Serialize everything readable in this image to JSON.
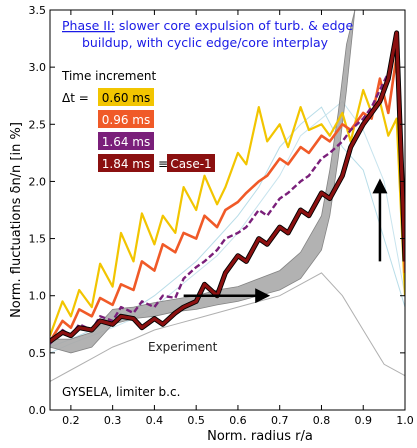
{
  "chart_data": {
    "type": "line",
    "title_phase": "Phase II:",
    "title_rest": " slower core expulsion of turb. & edge",
    "title_line2": "buildup, with cyclic edge/core interplay",
    "xlabel": "Norm. radius r/a",
    "ylabel": "Norm. fluctuations δn/n  [in %]",
    "xlim": [
      0.15,
      1.0
    ],
    "ylim": [
      0.0,
      3.5
    ],
    "xticks": [
      "0.2",
      "0.3",
      "0.4",
      "0.5",
      "0.6",
      "0.7",
      "0.8",
      "0.9",
      "1.0"
    ],
    "yticks": [
      "0.0",
      "0.5",
      "1.0",
      "1.5",
      "2.0",
      "2.5",
      "3.0",
      "3.5"
    ],
    "legend_title": "Time increment",
    "legend_delta": "Δt =",
    "legend_equiv": "≡",
    "case_label": "Case-1",
    "experiment_label": "Experiment",
    "gysela_label": "GYSELA, limiter b.c.",
    "series": [
      {
        "name": "0.60 ms",
        "color": "#f2c500",
        "x": [
          0.15,
          0.18,
          0.2,
          0.22,
          0.25,
          0.27,
          0.3,
          0.32,
          0.35,
          0.37,
          0.4,
          0.42,
          0.45,
          0.47,
          0.5,
          0.52,
          0.55,
          0.57,
          0.6,
          0.62,
          0.65,
          0.67,
          0.7,
          0.72,
          0.75,
          0.77,
          0.8,
          0.82,
          0.85,
          0.87,
          0.9,
          0.92,
          0.94,
          0.96,
          0.98,
          1.0
        ],
        "y": [
          0.65,
          0.95,
          0.82,
          1.05,
          0.9,
          1.28,
          1.08,
          1.55,
          1.3,
          1.72,
          1.45,
          1.7,
          1.55,
          1.95,
          1.75,
          2.05,
          1.8,
          1.95,
          2.25,
          2.15,
          2.65,
          2.35,
          2.5,
          2.3,
          2.65,
          2.45,
          2.5,
          2.4,
          2.6,
          2.35,
          2.8,
          2.6,
          2.7,
          2.4,
          2.55,
          1.0
        ]
      },
      {
        "name": "0.96 ms",
        "color": "#f05a28",
        "x": [
          0.15,
          0.18,
          0.2,
          0.22,
          0.25,
          0.27,
          0.3,
          0.32,
          0.35,
          0.37,
          0.4,
          0.42,
          0.45,
          0.47,
          0.5,
          0.52,
          0.55,
          0.57,
          0.6,
          0.62,
          0.65,
          0.67,
          0.7,
          0.72,
          0.75,
          0.77,
          0.8,
          0.82,
          0.85,
          0.87,
          0.9,
          0.92,
          0.94,
          0.96,
          0.98,
          1.0
        ],
        "y": [
          0.6,
          0.78,
          0.72,
          0.88,
          0.82,
          0.98,
          0.92,
          1.1,
          1.05,
          1.3,
          1.22,
          1.45,
          1.38,
          1.55,
          1.5,
          1.7,
          1.6,
          1.75,
          1.82,
          1.9,
          2.0,
          2.05,
          2.2,
          2.15,
          2.3,
          2.25,
          2.4,
          2.35,
          2.5,
          2.45,
          2.6,
          2.55,
          2.9,
          2.6,
          3.1,
          1.2
        ]
      },
      {
        "name": "1.64 ms",
        "color": "#7a1f7a",
        "x": [
          0.15,
          0.18,
          0.2,
          0.22,
          0.25,
          0.27,
          0.3,
          0.32,
          0.35,
          0.37,
          0.4,
          0.42,
          0.45,
          0.47,
          0.5,
          0.52,
          0.55,
          0.57,
          0.6,
          0.62,
          0.65,
          0.67,
          0.7,
          0.72,
          0.75,
          0.77,
          0.8,
          0.82,
          0.85,
          0.87,
          0.9,
          0.92,
          0.94,
          0.96,
          0.98,
          1.0
        ],
        "y": [
          0.58,
          0.7,
          0.65,
          0.75,
          0.7,
          0.82,
          0.78,
          0.9,
          0.85,
          0.95,
          0.9,
          1.0,
          0.98,
          1.15,
          1.25,
          1.3,
          1.4,
          1.5,
          1.55,
          1.6,
          1.75,
          1.7,
          1.85,
          1.9,
          2.0,
          2.05,
          2.2,
          2.25,
          2.35,
          2.45,
          2.55,
          2.65,
          2.8,
          2.95,
          3.2,
          1.6
        ]
      },
      {
        "name": "1.84 ms",
        "color": "#8b1010",
        "x": [
          0.15,
          0.18,
          0.2,
          0.22,
          0.25,
          0.27,
          0.3,
          0.32,
          0.35,
          0.37,
          0.4,
          0.42,
          0.45,
          0.47,
          0.5,
          0.52,
          0.55,
          0.57,
          0.6,
          0.62,
          0.65,
          0.67,
          0.7,
          0.72,
          0.75,
          0.77,
          0.8,
          0.82,
          0.85,
          0.87,
          0.9,
          0.92,
          0.94,
          0.96,
          0.98,
          1.0
        ],
        "y": [
          0.6,
          0.68,
          0.65,
          0.72,
          0.7,
          0.78,
          0.75,
          0.82,
          0.8,
          0.72,
          0.8,
          0.75,
          0.85,
          0.9,
          0.95,
          1.1,
          1.0,
          1.2,
          1.35,
          1.3,
          1.5,
          1.45,
          1.6,
          1.55,
          1.75,
          1.7,
          1.9,
          1.85,
          2.05,
          2.3,
          2.5,
          2.6,
          2.7,
          2.9,
          3.3,
          1.3
        ]
      }
    ],
    "faint_series": [
      {
        "color": "#b8dde8",
        "x": [
          0.15,
          0.2,
          0.25,
          0.3,
          0.35,
          0.4,
          0.45,
          0.5,
          0.55,
          0.6,
          0.65,
          0.7,
          0.75,
          0.8,
          0.85,
          0.9,
          0.95,
          1.0
        ],
        "y": [
          0.55,
          0.62,
          0.7,
          0.78,
          0.88,
          1.0,
          1.15,
          1.3,
          1.5,
          1.7,
          1.95,
          2.3,
          2.5,
          2.65,
          2.3,
          2.1,
          1.5,
          0.9
        ]
      },
      {
        "color": "#c8e4ee",
        "x": [
          0.15,
          0.2,
          0.25,
          0.3,
          0.35,
          0.4,
          0.45,
          0.5,
          0.55,
          0.6,
          0.65,
          0.7,
          0.75,
          0.8,
          0.85,
          0.9,
          0.95,
          1.0
        ],
        "y": [
          0.5,
          0.58,
          0.65,
          0.72,
          0.8,
          0.9,
          1.05,
          1.2,
          1.35,
          1.55,
          1.8,
          2.05,
          2.4,
          2.55,
          2.7,
          2.45,
          2.0,
          1.0
        ]
      },
      {
        "color": "#b0b0b0",
        "x": [
          0.15,
          0.2,
          0.25,
          0.3,
          0.35,
          0.4,
          0.45,
          0.5,
          0.55,
          0.6,
          0.65,
          0.7,
          0.75,
          0.8,
          0.85,
          0.9,
          0.95,
          1.0
        ],
        "y": [
          0.25,
          0.35,
          0.45,
          0.55,
          0.62,
          0.7,
          0.75,
          0.8,
          0.85,
          0.9,
          0.95,
          1.0,
          1.1,
          1.2,
          1.0,
          0.7,
          0.4,
          0.3
        ]
      }
    ],
    "experiment_band": {
      "x": [
        0.15,
        0.2,
        0.25,
        0.3,
        0.35,
        0.4,
        0.45,
        0.5,
        0.55,
        0.6,
        0.65,
        0.7,
        0.75,
        0.8,
        0.82,
        0.84,
        0.86,
        0.88
      ],
      "y_low": [
        0.55,
        0.5,
        0.55,
        0.75,
        0.8,
        0.82,
        0.86,
        0.88,
        0.92,
        0.95,
        1.0,
        1.05,
        1.15,
        1.4,
        1.7,
        2.2,
        2.8,
        3.5
      ],
      "y_high": [
        0.62,
        0.62,
        0.68,
        0.88,
        0.9,
        0.94,
        0.97,
        1.0,
        1.05,
        1.08,
        1.15,
        1.22,
        1.38,
        1.7,
        2.1,
        2.6,
        3.2,
        3.5
      ],
      "color": "#aaaaaa"
    },
    "arrows": [
      {
        "x0": 0.47,
        "y0": 1.0,
        "x1": 0.67,
        "y1": 1.0
      },
      {
        "x0": 0.94,
        "y0": 1.3,
        "x1": 0.94,
        "y1": 2.0
      }
    ]
  }
}
